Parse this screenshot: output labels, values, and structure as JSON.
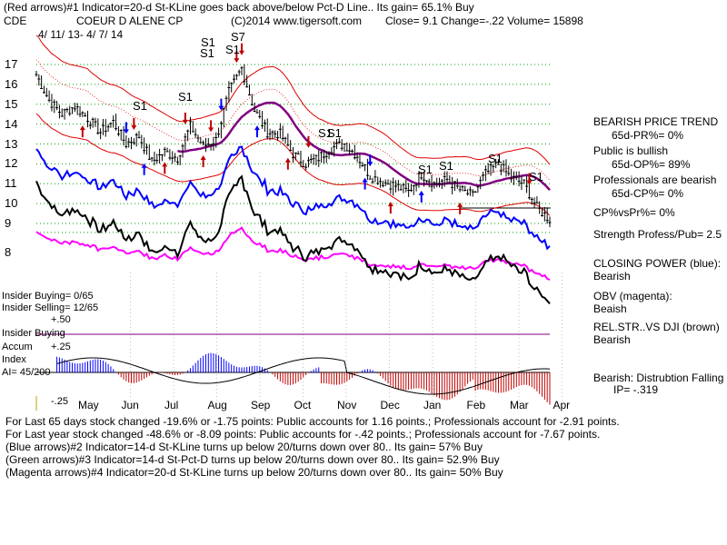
{
  "header": {
    "line1": "(Red arrows)#1 Indicator=20-d St-KLine goes back above/below Pct-D Line..  Its gain= 65.1% Buy",
    "ticker": "CDE",
    "company": "COEUR D ALENE CP",
    "copyright": "(C)2014 www.tigersoft.com",
    "close": "Close=  9.1  Change=-.22  Volume=  15898",
    "daterange": "4/ 11/ 13-  4/ 7/ 14"
  },
  "price_axis": [
    "17",
    "16",
    "15",
    "14",
    "13",
    "12",
    "11",
    "10",
    "9",
    "8"
  ],
  "months": [
    "May",
    "Jun",
    "Jul",
    "Aug",
    "Sep",
    "Oct",
    "Nov",
    "Dec",
    "Jan",
    "Feb",
    "Mar",
    "Apr"
  ],
  "signals": [
    "S1",
    "S1",
    "S7",
    "S1",
    "S1",
    "S1",
    "S1",
    "S1",
    "S1",
    "S1",
    "S1",
    "S1"
  ],
  "panel_labels": {
    "insider_buying_ratio": "Insider Buying= 0/65",
    "insider_selling_ratio": "Insider Selling= 12/65",
    "ai_plus50": "+.50",
    "ai_title": "Insider Buying",
    "ai_accum": "Accum",
    "ai_plus25": "+.25",
    "ai_index": "Index",
    "ai_value": "AI= 45/200",
    "ai_minus25": "-.25"
  },
  "right_panel": {
    "trend_title": "BEARISH PRICE TREND",
    "pr": "65d-PR%= 0%",
    "public": "Public is bullish",
    "op": "65d-OP%= 89%",
    "prof": "Professionals are bearish",
    "cp": "65d-CP%= 0%",
    "cpvspr": "CP%vsPr%=  0%",
    "strength": "Strength Profess/Pub= 2.5",
    "closing_power": "CLOSING POWER (blue):",
    "cp_state": "Bearish",
    "obv": "OBV (magenta):",
    "obv_state": "Beaish",
    "relstr": "REL.STR..VS DJI (brown)",
    "relstr_state": "Bearish",
    "distribution": "Bearish:  Distrubtion Falling",
    "ip": "IP= -.319"
  },
  "bottom": {
    "line1": "For Last 65 days stock changed  -19.6% or  -1.75 points:  Public accounts for  1.16 points.;  Professionals account for -2.91 points.",
    "line2": "For Last year stock changed  -48.6% or -8.09 points:  Public accounts for -.42 points.;  Professionals account for -7.67 points.",
    "line3": "(Blue arrows)#2 Indicator=14-d St-KLine turns up below 20/turns down over 80..  Its gain= 57% Buy",
    "line4": "(Green arrows)#3 Indicator=14-d St-Pct-D turns up below 20/turns down over 80..  Its gain= 52.9% Buy",
    "line5": "(Magenta arrows)#4 Indicator=20-d St-KLine turns up below 20/turns down over 80..  Its gain= 50% Buy"
  },
  "colors": {
    "price": "#000000",
    "bands": "#e00000",
    "ma": "#800080",
    "closing_power": "#0000ff",
    "obv": "#ff00ff",
    "relstr": "#000000",
    "grid": "#00a000",
    "ai_pos": "#0000ff",
    "ai_neg": "#c00000"
  },
  "chart_data": {
    "type": "line",
    "x_range": [
      "4/11/13",
      "4/7/14"
    ],
    "ylim": [
      8,
      17.5
    ],
    "price_close_approx": [
      [
        0,
        16.5
      ],
      [
        5,
        15.2
      ],
      [
        10,
        14.5
      ],
      [
        15,
        14.9
      ],
      [
        20,
        14.3
      ],
      [
        25,
        13.6
      ],
      [
        30,
        14.1
      ],
      [
        35,
        13.0
      ],
      [
        40,
        13.4
      ],
      [
        45,
        12.1
      ],
      [
        50,
        12.6
      ],
      [
        55,
        12.3
      ],
      [
        60,
        13.9
      ],
      [
        65,
        12.9
      ],
      [
        70,
        13.2
      ],
      [
        75,
        15.6
      ],
      [
        80,
        16.8
      ],
      [
        85,
        14.7
      ],
      [
        90,
        13.6
      ],
      [
        95,
        13.5
      ],
      [
        100,
        12.5
      ],
      [
        105,
        12.0
      ],
      [
        110,
        12.3
      ],
      [
        115,
        12.8
      ],
      [
        120,
        13.0
      ],
      [
        125,
        12.4
      ],
      [
        130,
        11.4
      ],
      [
        135,
        11.1
      ],
      [
        140,
        10.9
      ],
      [
        145,
        10.6
      ],
      [
        150,
        11.5
      ],
      [
        155,
        11.0
      ],
      [
        160,
        11.2
      ],
      [
        165,
        10.7
      ],
      [
        170,
        10.4
      ],
      [
        175,
        11.5
      ],
      [
        180,
        12.0
      ],
      [
        185,
        11.3
      ],
      [
        190,
        11.0
      ],
      [
        195,
        9.8
      ],
      [
        200,
        9.2
      ]
    ]
  }
}
